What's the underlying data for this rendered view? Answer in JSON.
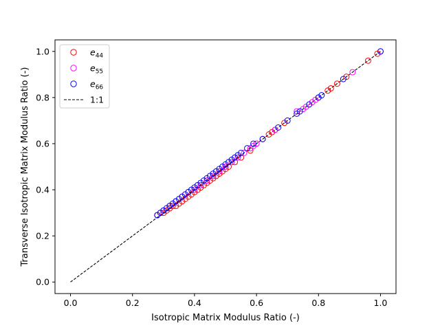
{
  "chart_data": {
    "type": "scatter",
    "title": "",
    "xlabel": "Isotropic Matrix Modulus Ratio (-)",
    "ylabel": "Transverse Isotropic Matrix Modulus Ratio (-)",
    "xlim": [
      -0.05,
      1.05
    ],
    "ylim": [
      -0.05,
      1.05
    ],
    "xticks": [
      "0.0",
      "0.2",
      "0.4",
      "0.6",
      "0.8",
      "1.0"
    ],
    "yticks": [
      "0.0",
      "0.2",
      "0.4",
      "0.6",
      "0.8",
      "1.0"
    ],
    "grid": false,
    "legend_position": "upper-left",
    "reference_line": {
      "name": "1:1",
      "x": [
        0.0,
        1.0
      ],
      "y": [
        0.0,
        1.0
      ],
      "color": "#000000",
      "style": "dashed"
    },
    "legend": [
      {
        "base": "e",
        "sub": "44",
        "marker": "open-circle",
        "color": "#ff0000"
      },
      {
        "base": "e",
        "sub": "55",
        "marker": "open-circle",
        "color": "#ff00ff"
      },
      {
        "base": "e",
        "sub": "66",
        "marker": "open-circle",
        "color": "#0000ff"
      },
      {
        "label": "1:1",
        "marker": "dashed-line",
        "color": "#000000"
      }
    ],
    "series": [
      {
        "name": "e44",
        "color": "#ff0000",
        "x": [
          0.28,
          0.29,
          0.3,
          0.31,
          0.32,
          0.33,
          0.34,
          0.35,
          0.36,
          0.37,
          0.38,
          0.39,
          0.4,
          0.41,
          0.42,
          0.43,
          0.44,
          0.45,
          0.46,
          0.47,
          0.48,
          0.49,
          0.5,
          0.51,
          0.53,
          0.55,
          0.58,
          0.6,
          0.62,
          0.64,
          0.65,
          0.66,
          0.69,
          0.83,
          0.84,
          0.86,
          0.89,
          0.96,
          0.99
        ],
        "y": [
          0.29,
          0.3,
          0.3,
          0.31,
          0.32,
          0.33,
          0.33,
          0.34,
          0.35,
          0.36,
          0.37,
          0.38,
          0.39,
          0.4,
          0.41,
          0.42,
          0.43,
          0.44,
          0.45,
          0.46,
          0.47,
          0.48,
          0.49,
          0.5,
          0.52,
          0.54,
          0.57,
          0.6,
          0.62,
          0.64,
          0.65,
          0.66,
          0.69,
          0.83,
          0.84,
          0.86,
          0.89,
          0.96,
          0.99
        ]
      },
      {
        "name": "e55",
        "color": "#ff00ff",
        "x": [
          0.28,
          0.3,
          0.32,
          0.34,
          0.36,
          0.38,
          0.4,
          0.42,
          0.44,
          0.46,
          0.48,
          0.5,
          0.52,
          0.54,
          0.56,
          0.58,
          0.59,
          0.6,
          0.66,
          0.73,
          0.75,
          0.76,
          0.78,
          0.79,
          0.8,
          0.91,
          1.0
        ],
        "y": [
          0.29,
          0.31,
          0.33,
          0.35,
          0.37,
          0.39,
          0.4,
          0.42,
          0.44,
          0.46,
          0.48,
          0.5,
          0.52,
          0.54,
          0.56,
          0.58,
          0.59,
          0.6,
          0.66,
          0.74,
          0.75,
          0.76,
          0.78,
          0.79,
          0.8,
          0.91,
          1.0
        ]
      },
      {
        "name": "e66",
        "color": "#0000ff",
        "x": [
          0.28,
          0.29,
          0.3,
          0.31,
          0.32,
          0.33,
          0.34,
          0.35,
          0.36,
          0.37,
          0.38,
          0.39,
          0.4,
          0.41,
          0.42,
          0.43,
          0.44,
          0.45,
          0.46,
          0.47,
          0.48,
          0.49,
          0.5,
          0.51,
          0.52,
          0.53,
          0.54,
          0.55,
          0.57,
          0.59,
          0.62,
          0.67,
          0.7,
          0.73,
          0.74,
          0.77,
          0.8,
          0.81,
          0.88,
          1.0
        ],
        "y": [
          0.29,
          0.3,
          0.31,
          0.32,
          0.33,
          0.34,
          0.35,
          0.36,
          0.37,
          0.38,
          0.39,
          0.4,
          0.41,
          0.42,
          0.43,
          0.44,
          0.45,
          0.46,
          0.47,
          0.48,
          0.49,
          0.5,
          0.51,
          0.52,
          0.53,
          0.54,
          0.55,
          0.56,
          0.58,
          0.6,
          0.62,
          0.67,
          0.7,
          0.73,
          0.74,
          0.77,
          0.8,
          0.81,
          0.88,
          1.0
        ]
      }
    ]
  }
}
